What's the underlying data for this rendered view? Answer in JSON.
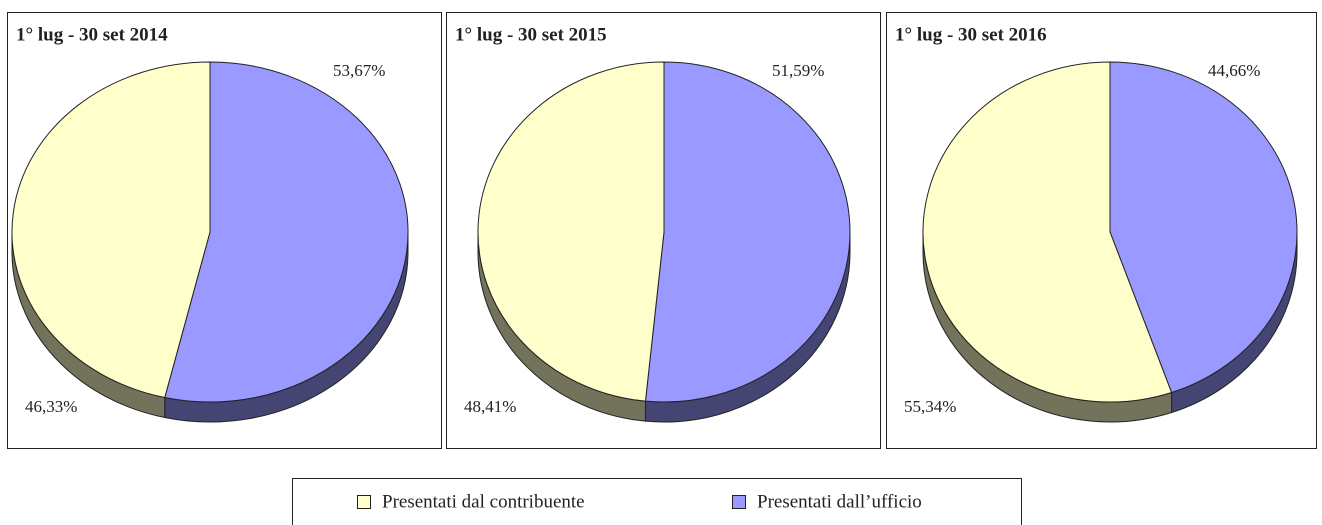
{
  "chart_data": [
    {
      "type": "pie",
      "title": "1° lug - 30 set 2014",
      "categories": [
        "Presentati dal contribuente",
        "Presentati dall’ufficio"
      ],
      "values": [
        46.33,
        53.67
      ],
      "value_labels": [
        "46,33%",
        "53,67%"
      ],
      "colors": [
        "#ffffcc",
        "#9999ff"
      ]
    },
    {
      "type": "pie",
      "title": "1° lug - 30 set 2015",
      "categories": [
        "Presentati dal contribuente",
        "Presentati dall’ufficio"
      ],
      "values": [
        48.41,
        51.59
      ],
      "value_labels": [
        "48,41%",
        "51,59%"
      ],
      "colors": [
        "#ffffcc",
        "#9999ff"
      ]
    },
    {
      "type": "pie",
      "title": "1° lug - 30 set 2016",
      "categories": [
        "Presentati dal contribuente",
        "Presentati dall’ufficio"
      ],
      "values": [
        55.34,
        44.66
      ],
      "value_labels": [
        "55,34%",
        "44,66%"
      ],
      "colors": [
        "#ffffcc",
        "#9999ff"
      ]
    }
  ]
}
